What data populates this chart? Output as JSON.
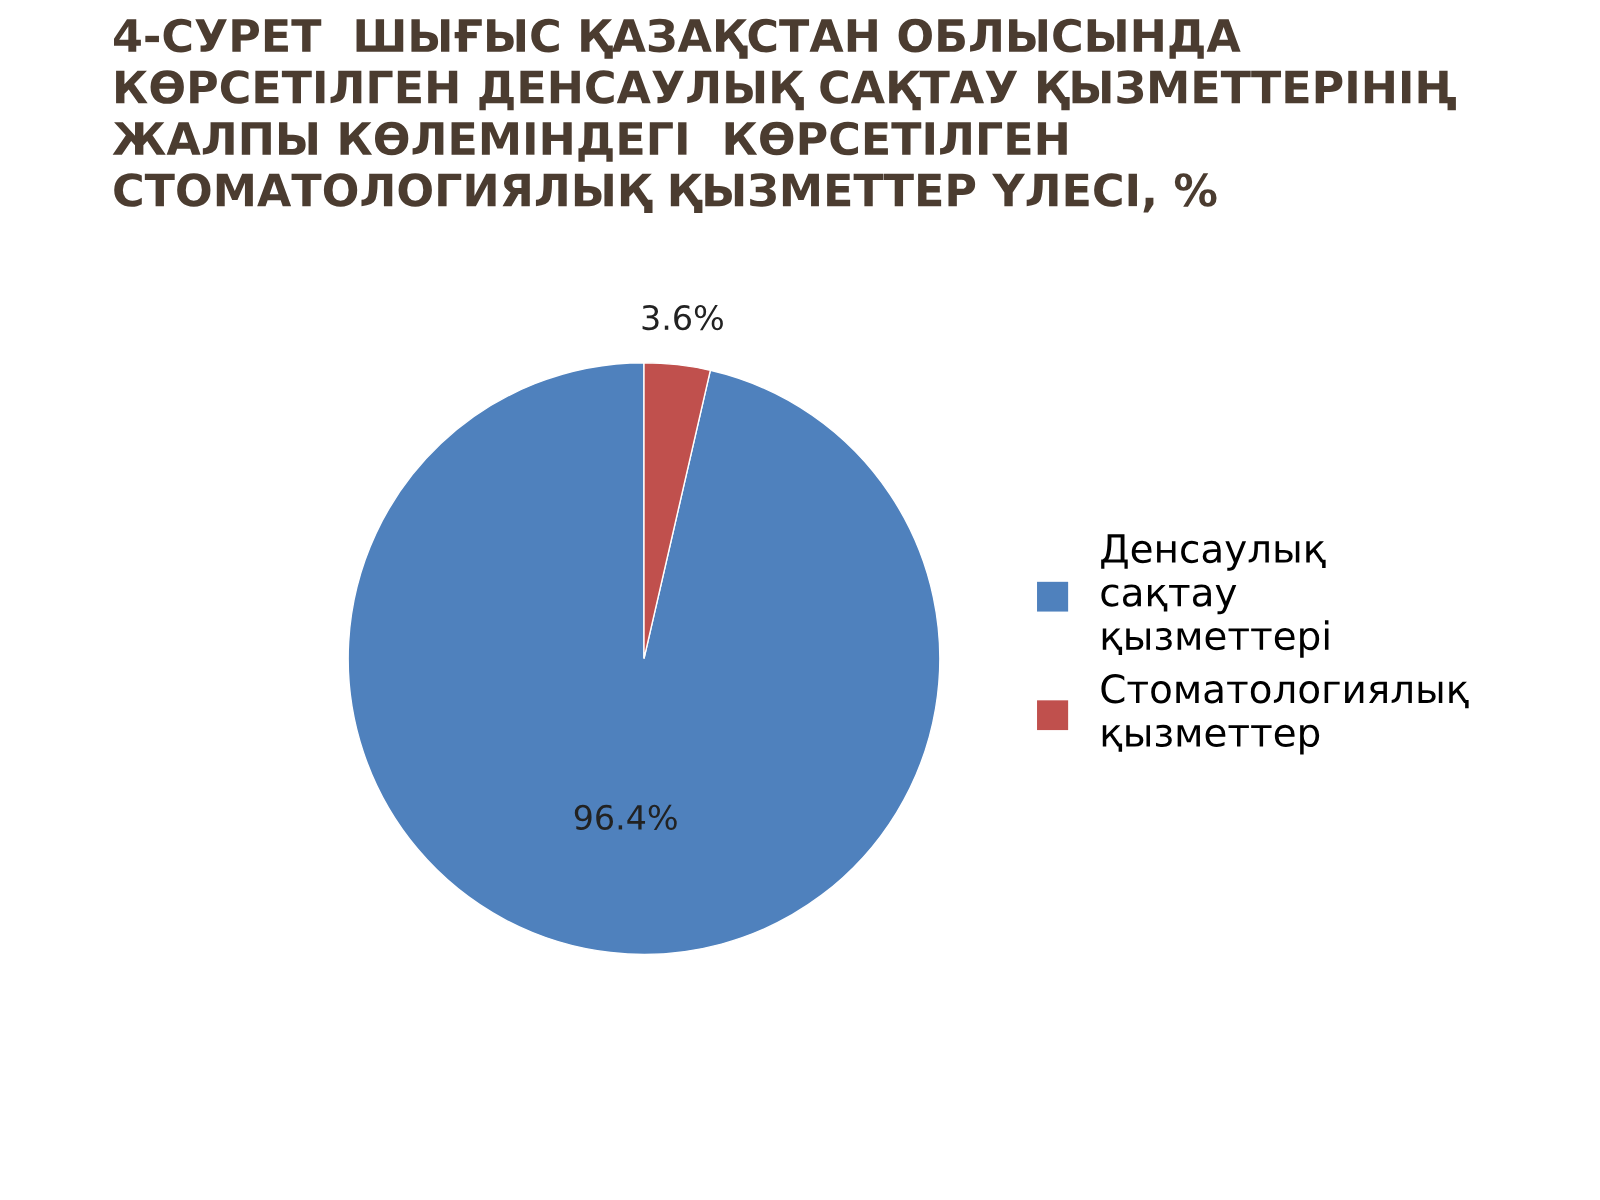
{
  "chart_data": {
    "type": "pie",
    "title": "4-СУРЕТ  ШЫҒЫС ҚАЗАҚСТАН ОБЛЫСЫНДА КӨРСЕТІЛГЕН ДЕНСАУЛЫҚ САҚТАУ ҚЫЗМЕТТЕРІНІҢ ЖАЛПЫ КӨЛЕМІНДЕГІ  КӨРСЕТІЛГЕН СТОМАТОЛОГИЯЛЫҚ ҚЫЗМЕТТЕР ҮЛЕСІ, %",
    "categories": [
      "Денсаулық сақтау қызметтері",
      "Стоматологиялық қызметтер"
    ],
    "values": [
      96.4,
      3.6
    ],
    "colors": [
      "#4f81bd",
      "#c0504d"
    ],
    "value_labels": [
      "96.4%",
      "3.6%"
    ],
    "legend": "right"
  }
}
